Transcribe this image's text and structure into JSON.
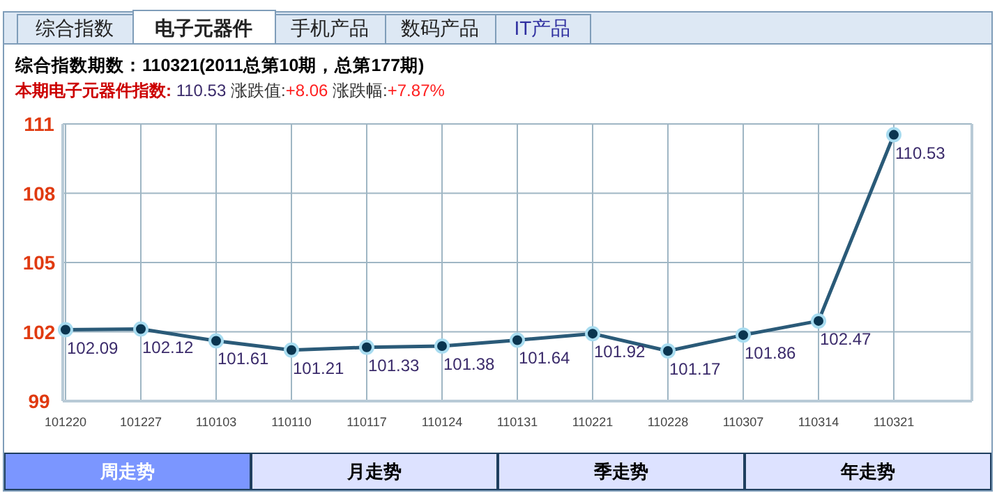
{
  "chart_data": {
    "type": "line",
    "title": "综合指数期数：110321(2011总第10期，总第177期)",
    "annotations": [
      "综合指数",
      "电子元器件",
      "手机产品",
      "数码产品",
      "IT产品",
      "本期电子元器件指数:",
      "110.53",
      "涨跌值:",
      "+8.06",
      "涨跌幅:",
      "+7.87%",
      "周走势",
      "月走势",
      "季走势",
      "年走势"
    ],
    "categories": [
      "101220",
      "101227",
      "110103",
      "110110",
      "110117",
      "110124",
      "110131",
      "110221",
      "110228",
      "110307",
      "110314",
      "110321"
    ],
    "series": [
      {
        "color": "#2a5a78",
        "values": [
          102.09,
          102.12,
          101.61,
          101.21,
          101.33,
          101.38,
          101.64,
          101.92,
          101.17,
          101.86,
          102.47,
          110.53
        ]
      }
    ],
    "ylim": [
      99,
      111
    ],
    "yticks": [
      99,
      102,
      105,
      108,
      111
    ],
    "grid": true,
    "marker": "circle",
    "line_style": "solid",
    "data_labels": true
  }
}
